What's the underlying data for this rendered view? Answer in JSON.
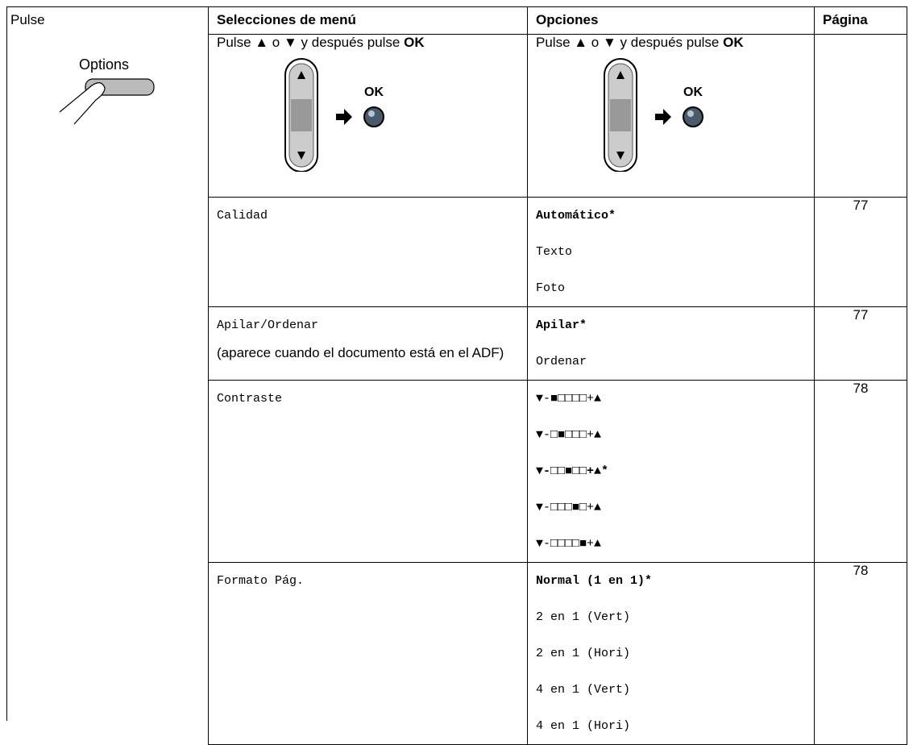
{
  "left_cell": {
    "label": "Pulse",
    "button_label": "Options"
  },
  "table": {
    "columns": [
      "Selecciones de menú",
      "Opciones",
      "Página"
    ],
    "instruction": {
      "text": "Pulse ▲ o ▼ y después pulse",
      "bold": "OK",
      "ok_label": "OK"
    },
    "rows": [
      {
        "menu": "Calidad",
        "options": [
          {
            "text": "Automático*",
            "bold": true
          },
          {
            "text": "Texto",
            "bold": false
          },
          {
            "text": "Foto",
            "bold": false
          }
        ],
        "page": "77"
      },
      {
        "menu": "Apilar/Ordenar",
        "note": "(aparece cuando el documento está en el ADF)",
        "options": [
          {
            "text": "Apilar*",
            "bold": true
          },
          {
            "text": "Ordenar",
            "bold": false
          }
        ],
        "page": "77"
      },
      {
        "menu": "Contraste",
        "options": [
          {
            "text": "▼-■□□□□+▲",
            "bold": false
          },
          {
            "text": "▼-□■□□□+▲",
            "bold": false
          },
          {
            "text": "▼-□□■□□+▲*",
            "bold": true
          },
          {
            "text": "▼-□□□■□+▲",
            "bold": false
          },
          {
            "text": "▼-□□□□■+▲",
            "bold": false
          }
        ],
        "page": "78"
      },
      {
        "menu": "Formato Pág.",
        "options": [
          {
            "text": "Normal (1 en 1)*",
            "bold": true
          },
          {
            "text": "2 en 1 (Vert)",
            "bold": false
          },
          {
            "text": "2 en 1 (Hori)",
            "bold": false
          },
          {
            "text": "4 en 1 (Vert)",
            "bold": false
          },
          {
            "text": "4 en 1 (Hori)",
            "bold": false
          }
        ],
        "page": "78"
      }
    ]
  }
}
